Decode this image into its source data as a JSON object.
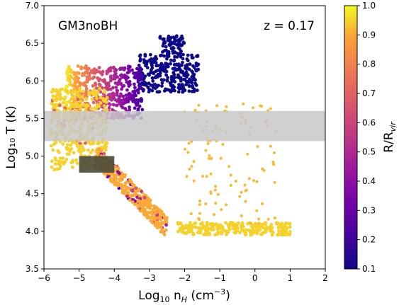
{
  "chart_data": {
    "type": "scatter",
    "title": "",
    "annotations": {
      "left": "GM3noBH",
      "right": "z = 0.17"
    },
    "xlabel": {
      "base": "Log",
      "sub": "10",
      "mid": " n",
      "sub2": "H",
      "tail": " (cm",
      "sup": "−3",
      "end": ")"
    },
    "ylabel": "Log₁₀ T (K)",
    "colorbar_label": "R/R_vir",
    "colorbar_label_parts": {
      "base": "R/R",
      "sub": "vir"
    },
    "xlim": [
      -6,
      2
    ],
    "ylim": [
      3.5,
      7.0
    ],
    "xticks": [
      "−6",
      "−5",
      "−4",
      "−3",
      "−2",
      "−1",
      "0",
      "1",
      "2"
    ],
    "yticks": [
      "3.5",
      "4.0",
      "4.5",
      "5.0",
      "5.5",
      "6.0",
      "6.5",
      "7.0"
    ],
    "colorbar_range": [
      0.1,
      1.0
    ],
    "colorbar_ticks": [
      "0.1",
      "0.2",
      "0.3",
      "0.4",
      "0.5",
      "0.6",
      "0.7",
      "0.8",
      "0.9",
      "1.0"
    ],
    "colormap": "plasma",
    "grey_band": {
      "y_range": [
        5.2,
        5.6
      ],
      "color": "#c8c8c8"
    },
    "dark_box": {
      "x_range": [
        -5.0,
        -4.0
      ],
      "y_range": [
        4.78,
        5.0
      ],
      "color": "#4a4a3a"
    },
    "regions": [
      {
        "name": "hot halo",
        "x_range": [
          -3.3,
          -1.6
        ],
        "y_range": [
          5.85,
          6.6
        ],
        "color_value": 0.1
      },
      {
        "name": "hot gradient",
        "x_range": [
          -5.4,
          -3.2
        ],
        "y_range": [
          5.5,
          6.2
        ],
        "color_value_range": [
          1.0,
          0.2
        ]
      },
      {
        "name": "warm fan",
        "x_range": [
          -5.8,
          -4.2
        ],
        "y_range": [
          4.8,
          5.9
        ],
        "color_value": 0.95
      },
      {
        "name": "cooling branch",
        "x_range": [
          -4.5,
          -2.5
        ],
        "y_range": [
          4.0,
          5.0
        ],
        "color_value": 0.9
      },
      {
        "name": "cold plateau",
        "x_range": [
          -2.2,
          1.0
        ],
        "y_range": [
          3.95,
          4.12
        ],
        "color_value": 0.95
      },
      {
        "name": "diffuse yellow",
        "x_range": [
          -2.0,
          0.6
        ],
        "y_range": [
          4.1,
          5.7
        ],
        "color_value": 0.92
      }
    ]
  }
}
